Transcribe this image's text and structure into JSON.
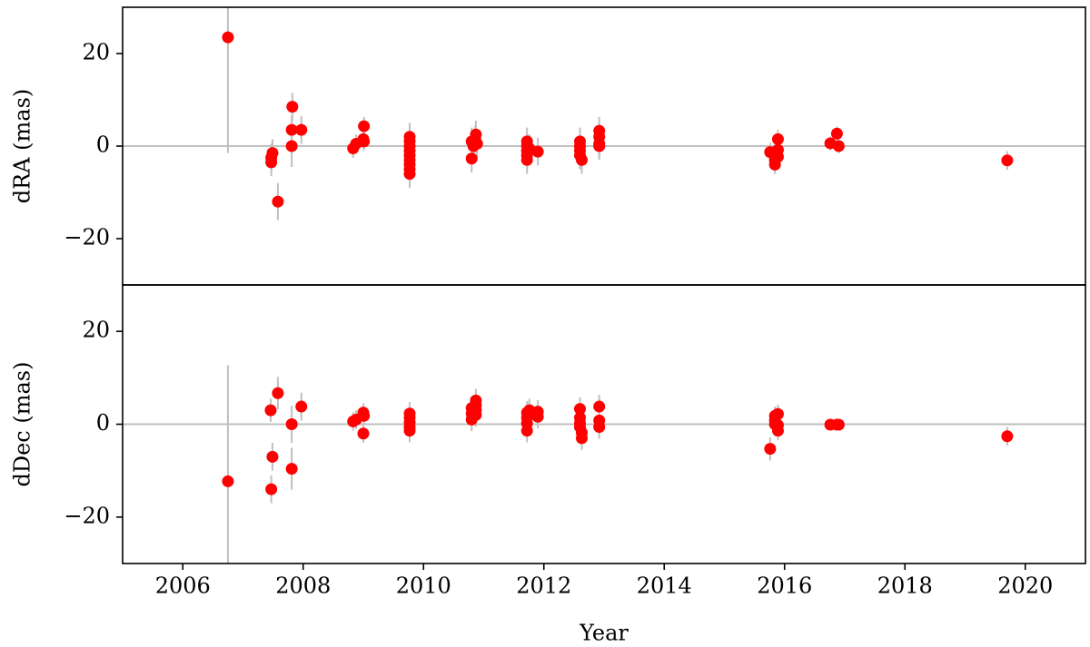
{
  "chart_data": [
    {
      "type": "errorbar-scatter",
      "ylabel": "dRA (mas)",
      "color": "#ff0000",
      "error_color": "#bfbfbf",
      "hline": 0,
      "xlim": [
        2005,
        2021
      ],
      "ylim": [
        -30,
        30
      ],
      "yticks": [
        {
          "value": -20,
          "label": "−20"
        },
        0,
        20
      ],
      "x": [
        2006.75,
        2007.47,
        2007.47,
        2007.49,
        2007.58,
        2007.81,
        2007.81,
        2007.82,
        2007.97,
        2008.83,
        2008.88,
        2009.0,
        2009.01,
        2009.01,
        2009.77,
        2009.77,
        2009.77,
        2009.77,
        2009.77,
        2009.77,
        2009.77,
        2009.77,
        2009.77,
        2010.8,
        2010.8,
        2010.83,
        2010.87,
        2010.86,
        2010.89,
        2011.72,
        2011.72,
        2011.72,
        2011.72,
        2011.72,
        2011.76,
        2011.9,
        2012.6,
        2012.6,
        2012.6,
        2012.6,
        2012.63,
        2012.92,
        2012.92,
        2012.92,
        2012.92,
        2015.76,
        2015.84,
        2015.84,
        2015.84,
        2015.89,
        2015.89,
        2015.89,
        2016.76,
        2016.87,
        2016.9,
        2019.7
      ],
      "values": [
        23.5,
        -3.5,
        -2.5,
        -1.5,
        -12,
        0,
        3.5,
        8.5,
        3.5,
        -0.5,
        0.5,
        1.5,
        1,
        4.3,
        2,
        1,
        0,
        -1,
        -2,
        -3,
        -4,
        -5,
        -6,
        -2.7,
        1,
        0,
        2.5,
        1.5,
        0.5,
        1,
        0,
        -1,
        -2,
        -3,
        -0.5,
        -1.2,
        1,
        0,
        -1,
        -2,
        -3,
        3.3,
        2,
        0.5,
        0,
        -1.3,
        -2,
        -3,
        -4,
        1.5,
        -0.8,
        -2.3,
        0.6,
        2.7,
        0,
        -3.1
      ],
      "errors": [
        25,
        3,
        3,
        3,
        4,
        4.5,
        3,
        3,
        3,
        2,
        2,
        2,
        2,
        2,
        3,
        3,
        3,
        3,
        3,
        3,
        3,
        3,
        3,
        3,
        3,
        3,
        3,
        3,
        3,
        3,
        3,
        3,
        3,
        3,
        3,
        3,
        3,
        3,
        3,
        3,
        3,
        3,
        3,
        3,
        3,
        2,
        2,
        2,
        2,
        2,
        2,
        2,
        1.5,
        1.5,
        1.5,
        2
      ]
    },
    {
      "type": "errorbar-scatter",
      "ylabel": "dDec (mas)",
      "xlabel": "Year",
      "color": "#ff0000",
      "error_color": "#bfbfbf",
      "hline": 0,
      "xlim": [
        2005,
        2021
      ],
      "ylim": [
        -30,
        30
      ],
      "xticks": [
        2006,
        2008,
        2010,
        2012,
        2014,
        2016,
        2018,
        2020
      ],
      "yticks": [
        {
          "value": -20,
          "label": "−20"
        },
        0,
        20
      ],
      "x": [
        2006.75,
        2007.46,
        2007.47,
        2007.49,
        2007.58,
        2007.81,
        2007.81,
        2007.97,
        2008.83,
        2008.88,
        2009.0,
        2009.01,
        2009.0,
        2009.77,
        2009.77,
        2009.77,
        2009.77,
        2009.77,
        2010.8,
        2010.8,
        2010.8,
        2010.87,
        2010.87,
        2010.87,
        2010.87,
        2011.72,
        2011.72,
        2011.72,
        2011.72,
        2011.76,
        2011.9,
        2011.9,
        2012.6,
        2012.6,
        2012.6,
        2012.6,
        2012.63,
        2012.63,
        2012.92,
        2012.92,
        2012.92,
        2015.76,
        2015.84,
        2015.84,
        2015.84,
        2015.89,
        2015.89,
        2015.89,
        2016.76,
        2016.87,
        2016.9,
        2019.7
      ],
      "values": [
        -12.3,
        3,
        -14,
        -7,
        6.7,
        0,
        -9.6,
        3.8,
        0.6,
        1,
        2.5,
        1.8,
        -2,
        2.3,
        1.4,
        0.4,
        -0.6,
        -1.4,
        3.5,
        2.3,
        1,
        5.1,
        4.1,
        3,
        2,
        2.5,
        1.4,
        0.2,
        -1.4,
        3,
        2.7,
        1.6,
        3.3,
        1.4,
        0.2,
        -0.6,
        -1.8,
        -3,
        3.8,
        0.8,
        -0.6,
        -5.3,
        1.8,
        0.8,
        0,
        2.2,
        -0.2,
        -1.4,
        -0.1,
        -0.1,
        -0.1,
        -2.6
      ],
      "errors": [
        25,
        2.5,
        3,
        3,
        3.5,
        4,
        4.5,
        3,
        2,
        2,
        2,
        2,
        2,
        2.5,
        2.5,
        2.5,
        2.5,
        2.5,
        2.5,
        2.5,
        2.5,
        2.5,
        2.5,
        2.5,
        2.5,
        2.5,
        2.5,
        2.5,
        2.5,
        2.5,
        2.5,
        2.5,
        2.5,
        2.5,
        2.5,
        2.5,
        2.5,
        2.5,
        2.5,
        2.5,
        2.5,
        2.5,
        2,
        2,
        2,
        2,
        2,
        2,
        1,
        1,
        1,
        2
      ]
    }
  ]
}
